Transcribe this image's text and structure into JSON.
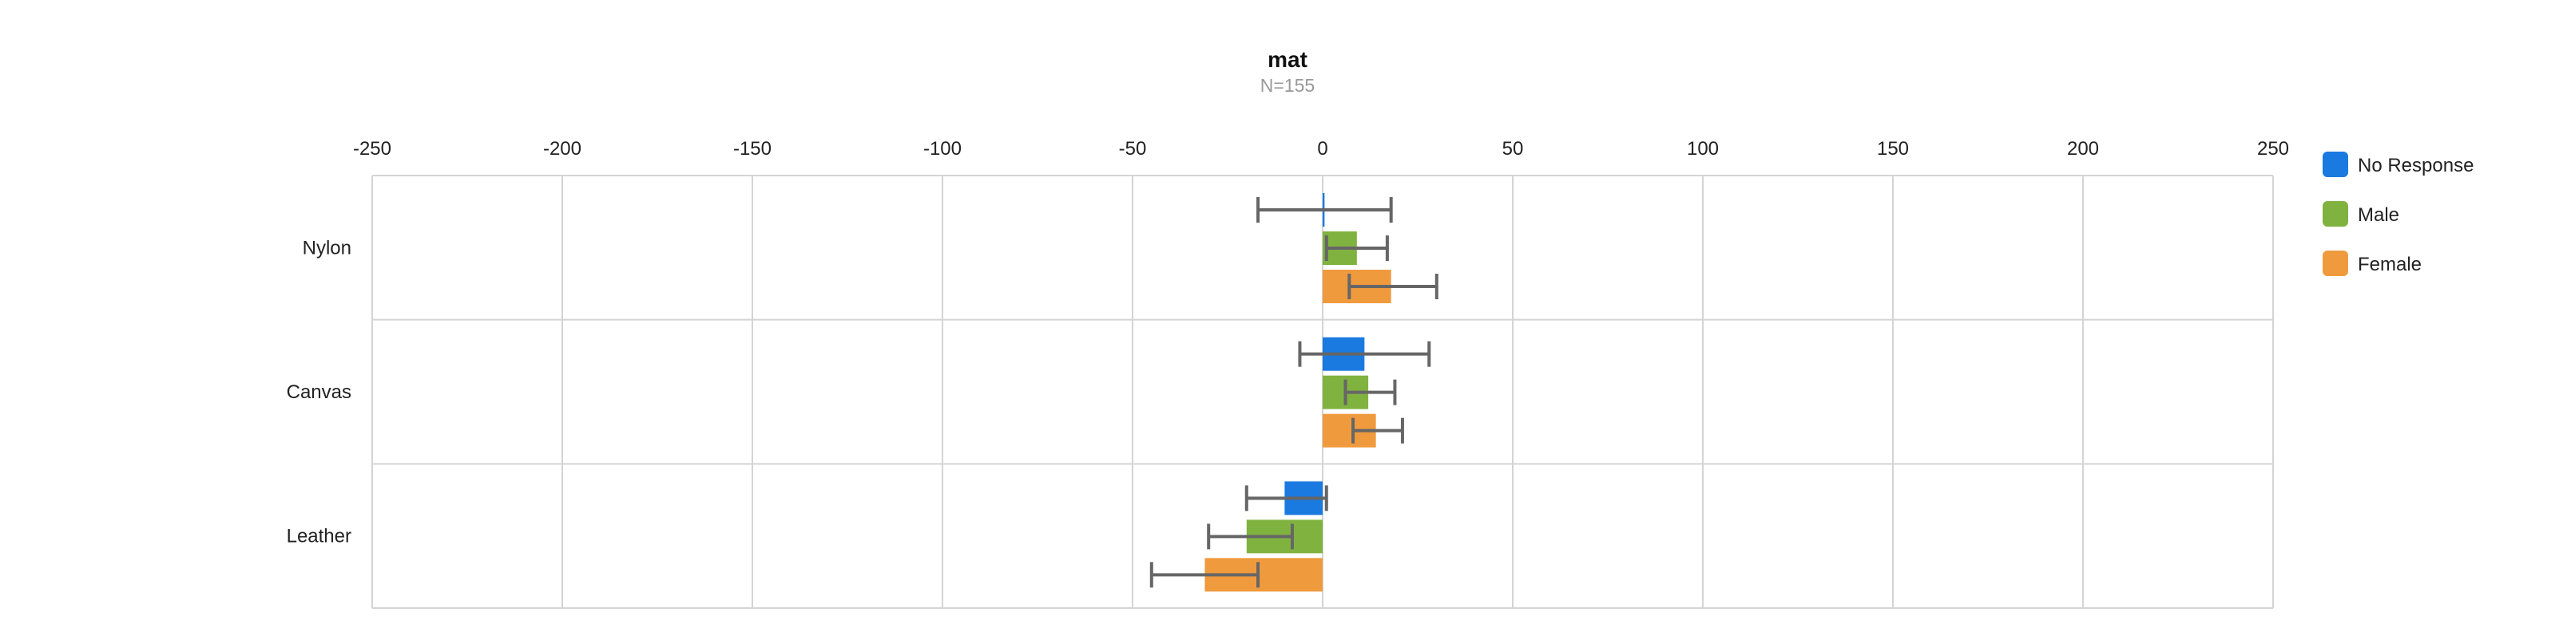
{
  "chart_data": {
    "type": "bar",
    "orientation": "horizontal",
    "title": "mat",
    "subtitle": "N=155",
    "xlabel": "",
    "ylabel": "",
    "xlim": [
      -250,
      250
    ],
    "x_ticks": [
      "-250",
      "-200",
      "-150",
      "-100",
      "-50",
      "0",
      "50",
      "100",
      "150",
      "200",
      "250"
    ],
    "x_tick_values": [
      -250,
      -200,
      -150,
      -100,
      -50,
      0,
      50,
      100,
      150,
      200,
      250
    ],
    "categories": [
      "Nylon",
      "Canvas",
      "Leather"
    ],
    "grid": true,
    "legend_position": "right",
    "series": [
      {
        "name": "No Response",
        "color": "#1a7ae0",
        "values": [
          0.5,
          11,
          -10
        ],
        "error_low": [
          -17,
          -6,
          -20
        ],
        "error_high": [
          18,
          28,
          1
        ]
      },
      {
        "name": "Male",
        "color": "#80b240",
        "values": [
          9,
          12,
          -20
        ],
        "error_low": [
          1,
          6,
          -30
        ],
        "error_high": [
          17,
          19,
          -8
        ]
      },
      {
        "name": "Female",
        "color": "#f09a3e",
        "values": [
          18,
          14,
          -31
        ],
        "error_low": [
          7,
          8,
          -45
        ],
        "error_high": [
          30,
          21,
          -17
        ]
      }
    ]
  }
}
